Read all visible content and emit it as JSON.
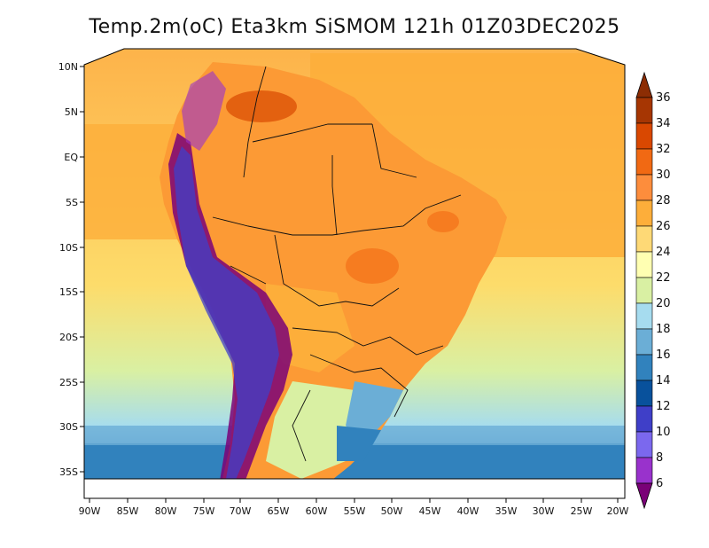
{
  "title": "Temp.2m(oC) Eta3km SiSMOM 121h 01Z03DEC2025",
  "map": {
    "lon_ticks": [
      "90W",
      "85W",
      "80W",
      "75W",
      "70W",
      "65W",
      "60W",
      "55W",
      "50W",
      "45W",
      "40W",
      "35W",
      "30W",
      "25W",
      "20W"
    ],
    "lat_ticks": [
      "10N",
      "5N",
      "EQ",
      "5S",
      "10S",
      "15S",
      "20S",
      "25S",
      "30S",
      "35S"
    ]
  },
  "colorbar": {
    "labels": [
      "36",
      "34",
      "32",
      "30",
      "28",
      "26",
      "24",
      "22",
      "20",
      "18",
      "16",
      "14",
      "12",
      "10",
      "8",
      "6"
    ],
    "colors": [
      "#8c2d04",
      "#a63603",
      "#d94801",
      "#f16913",
      "#fd8d3c",
      "#fdae3a",
      "#fed976",
      "#ffffb2",
      "#d9f0a3",
      "#a6dcef",
      "#6baed6",
      "#3182bd",
      "#08519c",
      "#3f3fc8",
      "#7b68ee",
      "#9932cc",
      "#7a0177"
    ]
  }
}
